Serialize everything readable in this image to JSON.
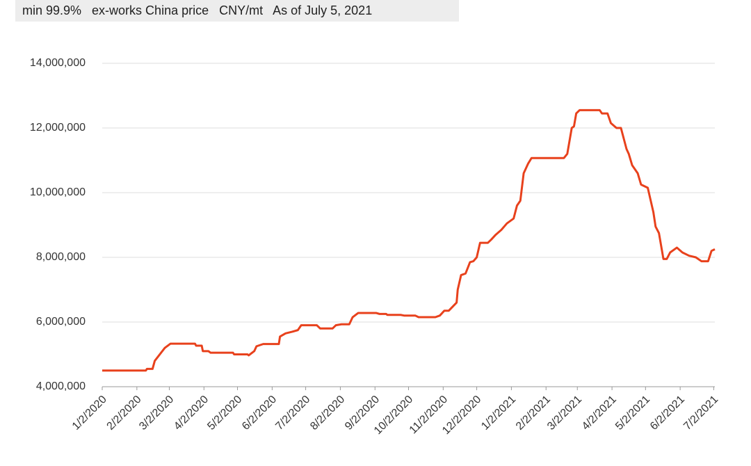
{
  "chart_data": {
    "type": "line",
    "subtitle": "min 99.9%   ex-works China price   CNY/mt   As of July 5, 2021",
    "x": [
      "1/2/2020",
      "2/10/2020",
      "2/11/2020",
      "2/16/2020",
      "2/18/2020",
      "2/27/2020",
      "3/3/2020",
      "3/25/2020",
      "3/26/2020",
      "3/31/2020",
      "4/1/2020",
      "4/6/2020",
      "4/8/2020",
      "4/28/2020",
      "4/29/2020",
      "5/11/2020",
      "5/12/2020",
      "5/17/2020",
      "5/19/2020",
      "5/25/2020",
      "6/8/2020",
      "6/9/2020",
      "6/14/2020",
      "6/20/2020",
      "6/25/2020",
      "6/28/2020",
      "7/12/2020",
      "7/15/2020",
      "7/26/2020",
      "7/29/2020",
      "8/3/2020",
      "8/10/2020",
      "8/13/2020",
      "8/18/2020",
      "9/3/2020",
      "9/6/2020",
      "9/12/2020",
      "9/13/2020",
      "9/25/2020",
      "9/28/2020",
      "10/8/2020",
      "10/11/2020",
      "10/26/2020",
      "10/30/2020",
      "11/3/2020",
      "11/7/2020",
      "11/14/2020",
      "11/15/2020",
      "11/18/2020",
      "11/22/2020",
      "11/26/2020",
      "11/29/2020",
      "12/2/2020",
      "12/5/2020",
      "12/12/2020",
      "12/15/2020",
      "12/19/2020",
      "12/24/2020",
      "12/29/2020",
      "1/4/2021",
      "1/7/2021",
      "1/10/2021",
      "1/13/2021",
      "1/17/2021",
      "1/20/2021",
      "2/18/2021",
      "2/21/2021",
      "2/25/2021",
      "2/27/2021",
      "3/1/2021",
      "3/4/2021",
      "3/22/2021",
      "3/24/2021",
      "3/29/2021",
      "4/1/2021",
      "4/6/2021",
      "4/10/2021",
      "4/15/2021",
      "4/17/2021",
      "4/20/2021",
      "4/25/2021",
      "4/28/2021",
      "5/4/2021",
      "5/9/2021",
      "5/11/2021",
      "5/14/2021",
      "5/18/2021",
      "5/21/2021",
      "5/24/2021",
      "5/30/2021",
      "6/4/2021",
      "6/10/2021",
      "6/16/2021",
      "6/21/2021",
      "6/27/2021",
      "6/30/2021",
      "7/3/2021"
    ],
    "series": [
      {
        "color": "#e8411c",
        "values": [
          4500000,
          4500000,
          4550000,
          4550000,
          4800000,
          5200000,
          5330000,
          5330000,
          5270000,
          5270000,
          5100000,
          5100000,
          5050000,
          5050000,
          5000000,
          5000000,
          4970000,
          5100000,
          5250000,
          5320000,
          5320000,
          5550000,
          5650000,
          5700000,
          5750000,
          5900000,
          5900000,
          5800000,
          5800000,
          5900000,
          5930000,
          5930000,
          6150000,
          6280000,
          6280000,
          6250000,
          6250000,
          6220000,
          6220000,
          6200000,
          6200000,
          6150000,
          6150000,
          6200000,
          6350000,
          6350000,
          6600000,
          7000000,
          7450000,
          7500000,
          7850000,
          7880000,
          8000000,
          8450000,
          8450000,
          8550000,
          8700000,
          8850000,
          9050000,
          9200000,
          9600000,
          9750000,
          10600000,
          10900000,
          11070000,
          11070000,
          11200000,
          12000000,
          12050000,
          12450000,
          12550000,
          12550000,
          12450000,
          12450000,
          12150000,
          12000000,
          12000000,
          11350000,
          11200000,
          10850000,
          10600000,
          10250000,
          10150000,
          9400000,
          8950000,
          8750000,
          7950000,
          7950000,
          8150000,
          8300000,
          8150000,
          8050000,
          8000000,
          7880000,
          7880000,
          8200000,
          8250000
        ]
      }
    ],
    "xlim": [
      "1/2/2020",
      "7/3/2021"
    ],
    "xticks": [
      "1/2/2020",
      "2/2/2020",
      "3/2/2020",
      "4/2/2020",
      "5/2/2020",
      "6/2/2020",
      "7/2/2020",
      "8/2/2020",
      "9/2/2020",
      "10/2/2020",
      "11/2/2020",
      "12/2/2020",
      "1/2/2021",
      "2/2/2021",
      "3/2/2021",
      "4/2/2021",
      "5/2/2021",
      "6/2/2021",
      "7/2/2021"
    ],
    "ylim": [
      4000000,
      14000000
    ],
    "yticks": [
      {
        "value": 4000000,
        "label": "4,000,000"
      },
      {
        "value": 6000000,
        "label": "6,000,000"
      },
      {
        "value": 8000000,
        "label": "8,000,000"
      },
      {
        "value": 10000000,
        "label": "10,000,000"
      },
      {
        "value": 12000000,
        "label": "12,000,000"
      },
      {
        "value": 14000000,
        "label": "14,000,000"
      }
    ],
    "grid": true
  }
}
